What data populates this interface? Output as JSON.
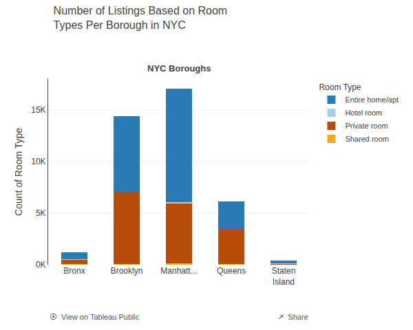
{
  "chart_data": {
    "type": "bar",
    "stacked": true,
    "title": "Number of Listings Based on Room\nTypes Per Borough in NYC",
    "subtitle": "NYC Boroughs",
    "ylabel": "Count of Room Type",
    "legend_title": "Room Type",
    "legend": "upper right",
    "grid": true,
    "categories": [
      "Bronx",
      "Brooklyn",
      "Manhatt...",
      "Queens",
      "Staten\nIsland"
    ],
    "series": [
      {
        "name": "Shared room",
        "color": "#f5a623",
        "values": [
          60,
          100,
          150,
          100,
          15
        ]
      },
      {
        "name": "Private room",
        "color": "#b84c0a",
        "values": [
          430,
          6900,
          5800,
          3300,
          110
        ]
      },
      {
        "name": "Hotel room",
        "color": "#aecde8",
        "values": [
          15,
          20,
          150,
          30,
          5
        ]
      },
      {
        "name": "Entire home/apt",
        "color": "#2a7ab5",
        "values": [
          700,
          7400,
          11000,
          2700,
          280
        ]
      }
    ],
    "ylim": [
      0,
      18000
    ],
    "yticks": [
      {
        "value": 0,
        "label": "0K"
      },
      {
        "value": 5000,
        "label": "5K"
      },
      {
        "value": 10000,
        "label": "10K"
      },
      {
        "value": 15000,
        "label": "15K"
      }
    ],
    "annotations": [
      "⦿  View on Tableau Public",
      "↗  Share"
    ]
  }
}
